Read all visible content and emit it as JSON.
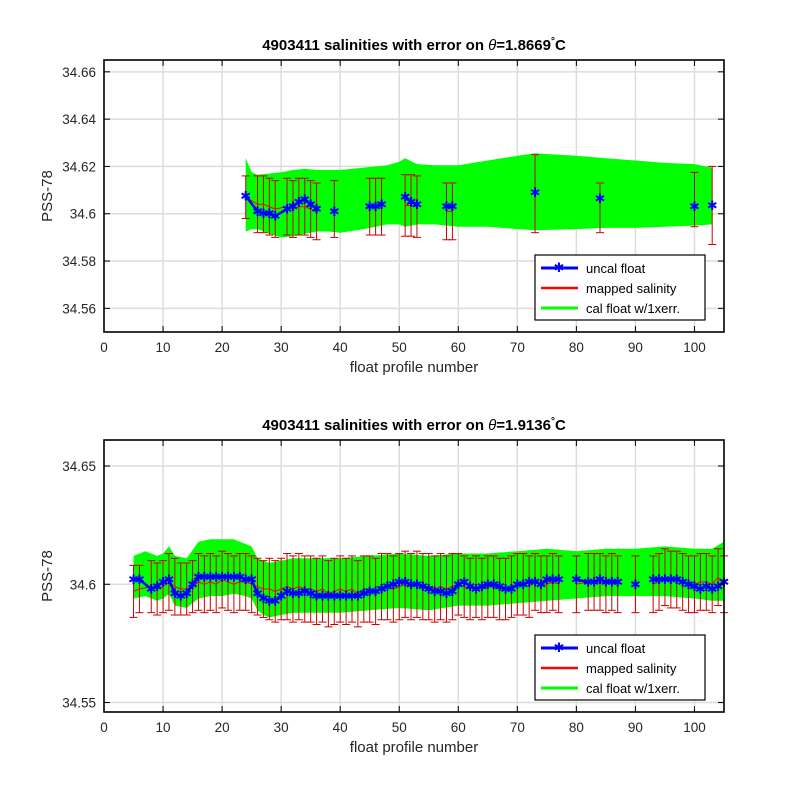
{
  "colors": {
    "uncal_float": "#0000ff",
    "mapped_salinity": "#ff0000",
    "errorbar": "#cc0000",
    "cal_float_band": "#00ff00",
    "grid": "#dcdcdc",
    "axes": "#000000"
  },
  "chart_data": [
    {
      "type": "line",
      "title_prefix": "4903411 salinities with error on ",
      "title_theta": "θ",
      "title_value": "=1.8669",
      "title_degree": "°",
      "title_unit": "C",
      "xlabel": "float profile number",
      "ylabel": "PSS-78",
      "xlim": [
        0,
        105
      ],
      "ylim": [
        34.55,
        34.665
      ],
      "xticks": [
        0,
        10,
        20,
        30,
        40,
        50,
        60,
        70,
        80,
        90,
        100
      ],
      "yticks": [
        34.56,
        34.58,
        34.6,
        34.62,
        34.64,
        34.66
      ],
      "ytick_labels": [
        "34.56",
        "34.58",
        "34.6",
        "34.62",
        "34.64",
        "34.66"
      ],
      "grid": true,
      "legend_position": "bottom-right",
      "legend": [
        "uncal float",
        "mapped salinity",
        "cal float w/1xerr."
      ],
      "series": [
        {
          "name": "uncal float",
          "x": [
            24,
            26,
            27,
            28,
            29,
            31,
            32,
            33,
            34,
            35,
            36,
            39,
            45,
            46,
            47,
            51,
            52,
            53,
            58,
            59,
            73,
            84,
            100,
            103
          ],
          "values": [
            34.6075,
            34.601,
            34.6,
            34.6,
            34.599,
            34.602,
            34.603,
            34.605,
            34.606,
            34.604,
            34.602,
            34.601,
            34.603,
            34.603,
            34.604,
            34.607,
            34.605,
            34.604,
            34.603,
            34.603,
            34.609,
            34.6065,
            34.603,
            34.6035
          ]
        },
        {
          "name": "mapped salinity",
          "x": [
            24,
            26,
            27,
            28,
            29,
            31,
            32,
            33,
            34,
            35,
            36,
            39,
            45,
            46,
            47,
            51,
            52,
            53,
            58,
            59,
            73,
            84,
            100,
            103
          ],
          "values": [
            34.607,
            34.604,
            34.604,
            34.603,
            34.602,
            34.603,
            34.602,
            34.603,
            34.603,
            34.602,
            34.601,
            34.602,
            34.603,
            34.603,
            34.603,
            34.6035,
            34.6035,
            34.603,
            34.601,
            34.601,
            34.6085,
            34.6025,
            34.606,
            34.6035
          ],
          "errors": [
            0.009,
            0.012,
            0.012,
            0.012,
            0.012,
            0.012,
            0.012,
            0.012,
            0.012,
            0.012,
            0.012,
            0.012,
            0.012,
            0.012,
            0.012,
            0.013,
            0.013,
            0.013,
            0.012,
            0.012,
            0.0165,
            0.0105,
            0.0115,
            0.0165
          ]
        },
        {
          "name": "cal float w/1xerr.",
          "x": [
            24,
            25,
            26,
            28,
            30,
            32,
            34,
            36,
            38,
            40,
            44,
            46,
            48,
            50,
            51,
            53,
            56,
            60,
            65,
            70,
            73,
            80,
            85,
            90,
            95,
            100,
            103
          ],
          "upper": [
            34.6235,
            34.6175,
            34.6165,
            34.617,
            34.6175,
            34.6185,
            34.619,
            34.6185,
            34.6185,
            34.6185,
            34.6195,
            34.62,
            34.6205,
            34.622,
            34.6235,
            34.621,
            34.6205,
            34.6205,
            34.6225,
            34.6245,
            34.6255,
            34.6245,
            34.6235,
            34.6225,
            34.6215,
            34.621,
            34.6195
          ],
          "lower": [
            34.5925,
            34.5935,
            34.5935,
            34.5915,
            34.59,
            34.5905,
            34.5915,
            34.5925,
            34.5925,
            34.592,
            34.5935,
            34.5945,
            34.5955,
            34.5955,
            34.5945,
            34.5955,
            34.5955,
            34.5945,
            34.5945,
            34.5935,
            34.593,
            34.5935,
            34.594,
            34.594,
            34.5945,
            34.595,
            34.5955
          ]
        }
      ]
    },
    {
      "type": "line",
      "title_prefix": "4903411 salinities with error on ",
      "title_theta": "θ",
      "title_value": "=1.9136",
      "title_degree": "°",
      "title_unit": "C",
      "xlabel": "float profile number",
      "ylabel": "PSS-78",
      "xlim": [
        0,
        105
      ],
      "ylim": [
        34.546,
        34.661
      ],
      "xticks": [
        0,
        10,
        20,
        30,
        40,
        50,
        60,
        70,
        80,
        90,
        100
      ],
      "yticks": [
        34.55,
        34.6,
        34.65
      ],
      "ytick_labels": [
        "34.55",
        "34.6",
        "34.65"
      ],
      "grid": true,
      "legend_position": "bottom-right",
      "legend": [
        "uncal float",
        "mapped salinity",
        "cal float w/1xerr."
      ],
      "series": [
        {
          "name": "uncal float",
          "x": [
            5,
            6,
            8,
            9,
            10,
            11,
            12,
            13,
            14,
            15,
            16,
            17,
            18,
            19,
            20,
            21,
            22,
            23,
            24,
            25,
            26,
            27,
            28,
            29,
            30,
            31,
            32,
            33,
            34,
            35,
            36,
            37,
            38,
            39,
            40,
            41,
            42,
            43,
            44,
            45,
            46,
            47,
            48,
            49,
            50,
            51,
            52,
            53,
            54,
            55,
            56,
            57,
            58,
            59,
            60,
            61,
            62,
            63,
            64,
            65,
            66,
            67,
            68,
            69,
            70,
            71,
            72,
            73,
            74,
            75,
            76,
            77,
            80,
            82,
            83,
            84,
            85,
            86,
            87,
            90,
            93,
            94,
            95,
            96,
            97,
            98,
            99,
            100,
            101,
            102,
            103,
            104,
            105
          ],
          "values": [
            34.602,
            34.602,
            34.598,
            34.599,
            34.601,
            34.602,
            34.596,
            34.595,
            34.596,
            34.6,
            34.603,
            34.603,
            34.603,
            34.603,
            34.603,
            34.603,
            34.603,
            34.603,
            34.602,
            34.602,
            34.596,
            34.594,
            34.593,
            34.593,
            34.595,
            34.597,
            34.596,
            34.596,
            34.597,
            34.596,
            34.595,
            34.595,
            34.595,
            34.595,
            34.595,
            34.595,
            34.595,
            34.595,
            34.596,
            34.597,
            34.597,
            34.598,
            34.599,
            34.6,
            34.601,
            34.601,
            34.6,
            34.6,
            34.599,
            34.598,
            34.597,
            34.597,
            34.596,
            34.597,
            34.6,
            34.601,
            34.599,
            34.598,
            34.599,
            34.6,
            34.6,
            34.599,
            34.598,
            34.598,
            34.6,
            34.6,
            34.601,
            34.601,
            34.6,
            34.602,
            34.602,
            34.602,
            34.602,
            34.601,
            34.601,
            34.602,
            34.601,
            34.601,
            34.601,
            34.6,
            34.602,
            34.602,
            34.602,
            34.602,
            34.602,
            34.601,
            34.6,
            34.599,
            34.598,
            34.599,
            34.598,
            34.599,
            34.601
          ]
        },
        {
          "name": "mapped salinity",
          "x": [
            5,
            6,
            8,
            9,
            10,
            11,
            12,
            13,
            14,
            15,
            16,
            17,
            18,
            19,
            20,
            21,
            22,
            23,
            24,
            25,
            26,
            27,
            28,
            29,
            30,
            31,
            32,
            33,
            34,
            35,
            36,
            37,
            38,
            39,
            40,
            41,
            42,
            43,
            44,
            45,
            46,
            47,
            48,
            49,
            50,
            51,
            52,
            53,
            54,
            55,
            56,
            57,
            58,
            59,
            60,
            61,
            62,
            63,
            64,
            65,
            66,
            67,
            68,
            69,
            70,
            71,
            72,
            73,
            74,
            75,
            76,
            77,
            80,
            82,
            83,
            84,
            85,
            86,
            87,
            90,
            93,
            94,
            95,
            96,
            97,
            98,
            99,
            100,
            101,
            102,
            103,
            104,
            105
          ],
          "values": [
            34.597,
            34.598,
            34.599,
            34.598,
            34.599,
            34.601,
            34.599,
            34.598,
            34.598,
            34.599,
            34.601,
            34.6,
            34.601,
            34.6,
            34.602,
            34.601,
            34.6,
            34.601,
            34.601,
            34.6,
            34.599,
            34.598,
            34.598,
            34.597,
            34.598,
            34.599,
            34.598,
            34.599,
            34.598,
            34.598,
            34.597,
            34.598,
            34.596,
            34.597,
            34.598,
            34.597,
            34.598,
            34.596,
            34.598,
            34.598,
            34.597,
            34.599,
            34.599,
            34.598,
            34.599,
            34.6,
            34.599,
            34.6,
            34.599,
            34.599,
            34.598,
            34.599,
            34.598,
            34.599,
            34.6,
            34.599,
            34.598,
            34.599,
            34.598,
            34.599,
            34.599,
            34.598,
            34.598,
            34.599,
            34.6,
            34.6,
            34.599,
            34.601,
            34.6,
            34.6,
            34.601,
            34.6,
            34.6,
            34.601,
            34.601,
            34.601,
            34.6,
            34.601,
            34.6,
            34.6,
            34.6,
            34.601,
            34.603,
            34.602,
            34.602,
            34.601,
            34.6,
            34.6,
            34.601,
            34.601,
            34.6,
            34.603,
            34.6
          ],
          "errors": [
            0.011,
            0.01,
            0.011,
            0.011,
            0.011,
            0.012,
            0.012,
            0.011,
            0.011,
            0.011,
            0.012,
            0.012,
            0.012,
            0.012,
            0.012,
            0.012,
            0.012,
            0.012,
            0.012,
            0.012,
            0.012,
            0.012,
            0.013,
            0.013,
            0.013,
            0.014,
            0.014,
            0.014,
            0.014,
            0.014,
            0.014,
            0.014,
            0.014,
            0.014,
            0.014,
            0.014,
            0.014,
            0.014,
            0.014,
            0.014,
            0.014,
            0.014,
            0.014,
            0.014,
            0.014,
            0.014,
            0.014,
            0.014,
            0.014,
            0.014,
            0.014,
            0.014,
            0.014,
            0.014,
            0.013,
            0.013,
            0.013,
            0.013,
            0.013,
            0.013,
            0.013,
            0.013,
            0.013,
            0.013,
            0.013,
            0.013,
            0.013,
            0.012,
            0.012,
            0.012,
            0.012,
            0.012,
            0.012,
            0.012,
            0.012,
            0.012,
            0.012,
            0.012,
            0.012,
            0.012,
            0.012,
            0.012,
            0.012,
            0.012,
            0.012,
            0.012,
            0.012,
            0.012,
            0.012,
            0.012,
            0.012,
            0.012,
            0.012
          ]
        },
        {
          "name": "cal float w/1xerr.",
          "x": [
            5,
            7,
            9,
            10,
            11,
            12,
            14,
            16,
            18,
            20,
            22,
            24,
            25,
            26,
            27,
            28,
            30,
            32,
            35,
            38,
            40,
            45,
            50,
            55,
            60,
            65,
            70,
            75,
            80,
            85,
            90,
            95,
            100,
            103,
            105
          ],
          "upper": [
            34.612,
            34.614,
            34.612,
            34.613,
            34.616,
            34.612,
            34.611,
            34.618,
            34.619,
            34.619,
            34.619,
            34.617,
            34.616,
            34.611,
            34.61,
            34.609,
            34.61,
            34.611,
            34.611,
            34.611,
            34.611,
            34.612,
            34.613,
            34.612,
            34.613,
            34.613,
            34.614,
            34.615,
            34.614,
            34.615,
            34.615,
            34.616,
            34.615,
            34.615,
            34.618
          ],
          "lower": [
            34.594,
            34.595,
            34.593,
            34.594,
            34.596,
            34.591,
            34.59,
            34.594,
            34.595,
            34.595,
            34.596,
            34.595,
            34.594,
            34.589,
            34.587,
            34.586,
            34.587,
            34.588,
            34.588,
            34.588,
            34.588,
            34.589,
            34.59,
            34.589,
            34.591,
            34.591,
            34.592,
            34.593,
            34.594,
            34.595,
            34.595,
            34.595,
            34.594,
            34.593,
            34.593
          ]
        }
      ]
    }
  ]
}
